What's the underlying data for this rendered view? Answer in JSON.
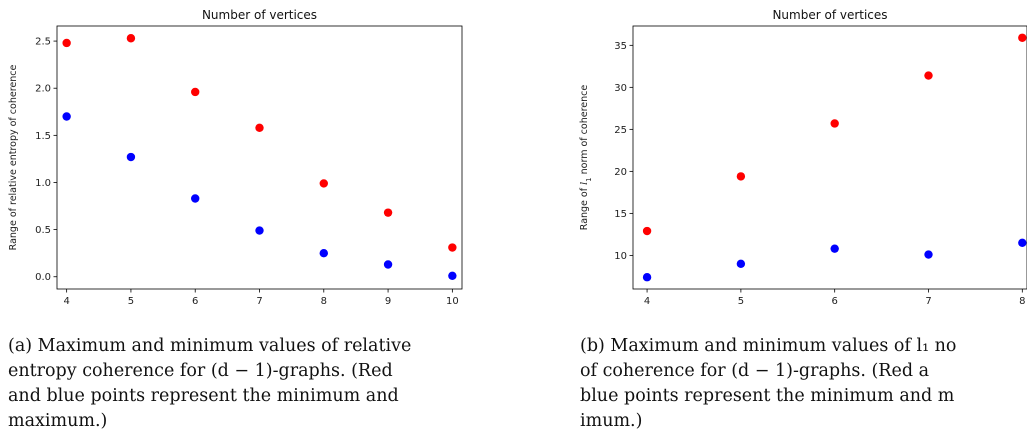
{
  "chart_data": [
    {
      "type": "scatter",
      "title": "Number of vertices",
      "xlabel": "",
      "ylabel": "Range of relative entropy of coherence",
      "xlim": [
        3.85,
        10.15
      ],
      "ylim": [
        -0.13,
        2.66
      ],
      "xticks": [
        "4",
        "5",
        "6",
        "7",
        "8",
        "9",
        "10"
      ],
      "yticks": [
        "0.0",
        "0.5",
        "1.0",
        "1.5",
        "2.0",
        "2.5"
      ],
      "grid": false,
      "series": [
        {
          "color": "#ff0000",
          "x": [
            4,
            5,
            6,
            7,
            8,
            9,
            10
          ],
          "y": [
            2.48,
            2.53,
            1.96,
            1.58,
            0.99,
            0.68,
            0.31
          ]
        },
        {
          "color": "#0000ff",
          "x": [
            4,
            5,
            6,
            7,
            8,
            9,
            10
          ],
          "y": [
            1.7,
            1.27,
            0.83,
            0.49,
            0.25,
            0.13,
            0.01
          ]
        }
      ]
    },
    {
      "type": "scatter",
      "title": "Number of vertices",
      "xlabel": "",
      "ylabel_prefix": "Range of ",
      "ylabel_symbol": "l",
      "ylabel_subscript": "1",
      "ylabel_suffix": " norm of coherence",
      "xlim": [
        3.85,
        8.05
      ],
      "ylim": [
        6.0,
        37.3
      ],
      "xticks": [
        "4",
        "5",
        "6",
        "7",
        "8"
      ],
      "yticks": [
        "10",
        "15",
        "20",
        "25",
        "30",
        "35"
      ],
      "grid": false,
      "series": [
        {
          "color": "#ff0000",
          "x": [
            4,
            5,
            6,
            7,
            8
          ],
          "y": [
            12.9,
            19.4,
            25.7,
            31.4,
            35.9
          ]
        },
        {
          "color": "#0000ff",
          "x": [
            4,
            5,
            6,
            7,
            8
          ],
          "y": [
            7.4,
            9.0,
            10.8,
            10.1,
            11.5
          ]
        }
      ]
    }
  ],
  "captions": {
    "a": [
      "(a) Maximum and minimum values of relative",
      "entropy coherence for (d − 1)-graphs.  (Red",
      "and blue points represent the minimum and",
      "maximum.)"
    ],
    "b": [
      "(b) Maximum and minimum values of l₁ no",
      "of coherence for (d − 1)-graphs.  (Red a",
      "blue points represent the minimum and m",
      "imum.)"
    ]
  }
}
